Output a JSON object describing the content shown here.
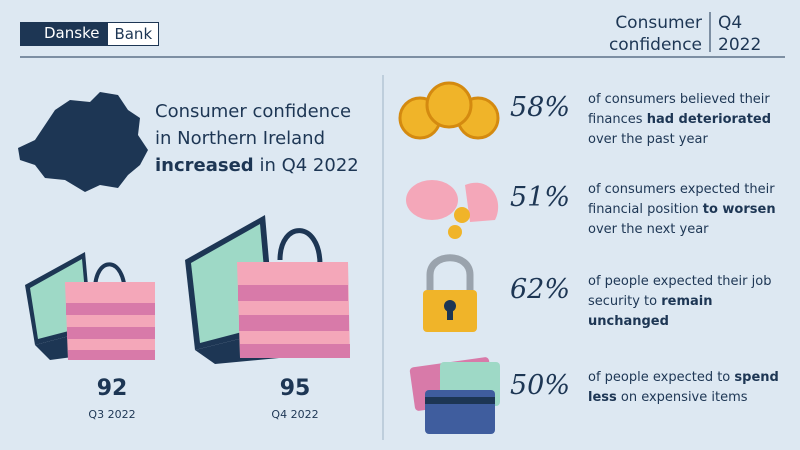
{
  "header": {
    "logo": {
      "left": "Danske",
      "right": "Bank"
    },
    "title": "Consumer confidence",
    "period": "Q4 2022"
  },
  "headline": {
    "before": "Consumer confidence in Northern Ireland",
    "bold": "increased",
    "after": "in Q4 2022"
  },
  "comparison": [
    {
      "value": "92",
      "label": "Q3 2022"
    },
    {
      "value": "95",
      "label": "Q4 2022"
    }
  ],
  "stats": [
    {
      "percent": "58%",
      "before": "of consumers believed their finances",
      "bold": "had deteriorated",
      "after": "over the past year"
    },
    {
      "percent": "51%",
      "before": "of consumers expected their financial position",
      "bold": "to worsen",
      "after": "over the next year"
    },
    {
      "percent": "62%",
      "before": "of people expected their job security to",
      "bold": "remain unchanged",
      "after": ""
    },
    {
      "percent": "50%",
      "before": "of people expected to",
      "bold": "spend less",
      "after": "on expensive items"
    }
  ]
}
